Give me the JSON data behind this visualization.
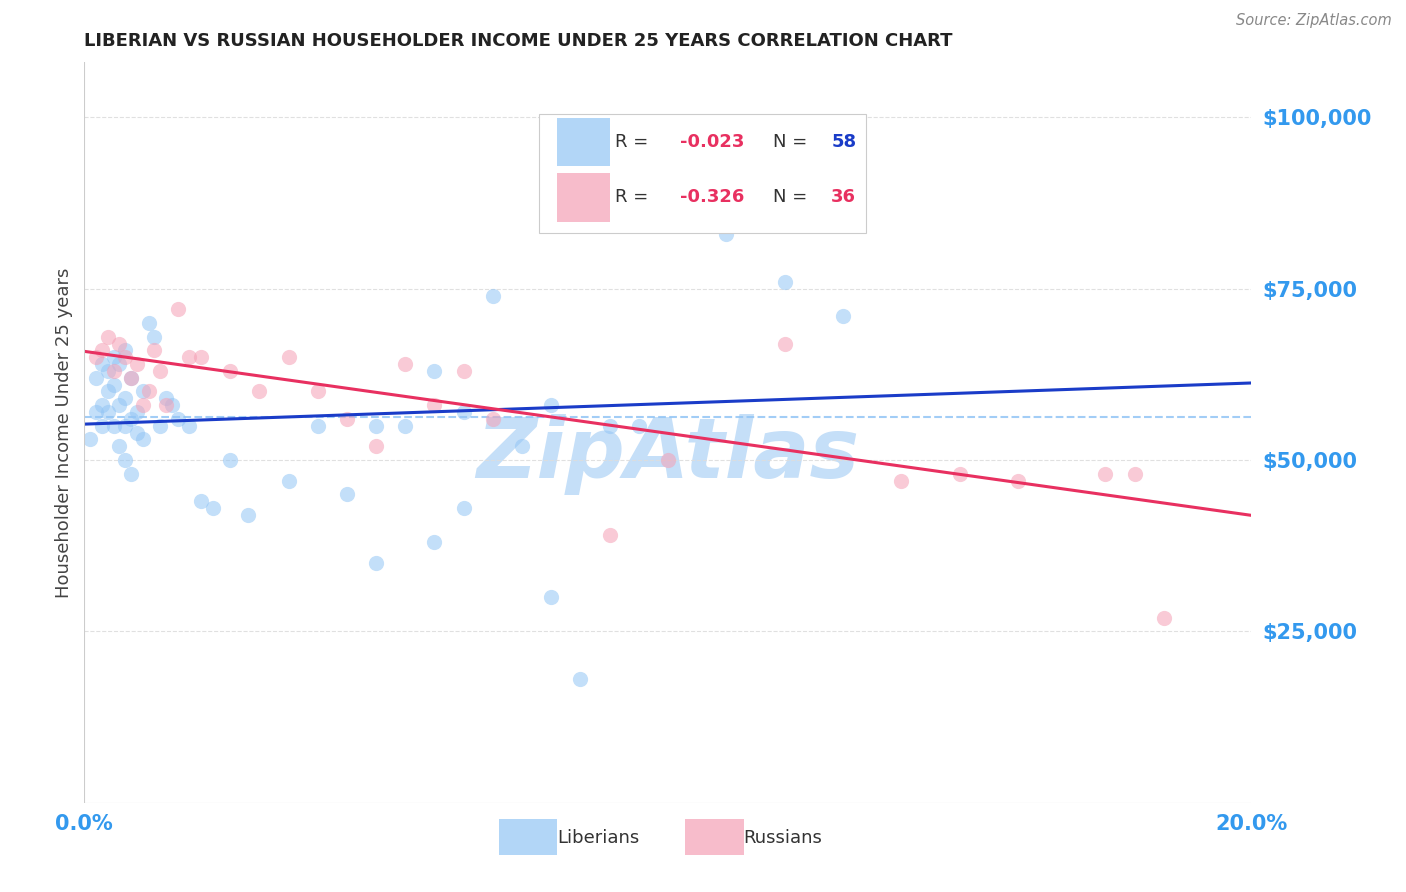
{
  "title": "LIBERIAN VS RUSSIAN HOUSEHOLDER INCOME UNDER 25 YEARS CORRELATION CHART",
  "source": "Source: ZipAtlas.com",
  "ylabel": "Householder Income Under 25 years",
  "xlim": [
    0.0,
    0.2
  ],
  "ylim": [
    0,
    108000
  ],
  "yticks": [
    25000,
    50000,
    75000,
    100000
  ],
  "ytick_labels": [
    "$25,000",
    "$50,000",
    "$75,000",
    "$100,000"
  ],
  "xticks": [
    0.0,
    0.05,
    0.1,
    0.15,
    0.2
  ],
  "xtick_labels": [
    "0.0%",
    "",
    "",
    "",
    "20.0%"
  ],
  "legend_R1": "R = ",
  "legend_V1": "-0.023",
  "legend_N1_label": "N = ",
  "legend_N1": "58",
  "legend_R2": "R = ",
  "legend_V2": "-0.326",
  "legend_N2_label": "N = ",
  "legend_N2": "36",
  "liberian_color": "#92C5F5",
  "russian_color": "#F5A0B5",
  "trend_liberian_color": "#1A3CC8",
  "trend_russian_color": "#E83060",
  "dashed_line_color": "#92C5F5",
  "axis_label_color": "#3399EE",
  "watermark_color": "#C5DFF8",
  "background_color": "#FFFFFF",
  "grid_color": "#DDDDDD",
  "liberian_x": [
    0.001,
    0.002,
    0.002,
    0.003,
    0.003,
    0.003,
    0.004,
    0.004,
    0.004,
    0.005,
    0.005,
    0.005,
    0.006,
    0.006,
    0.006,
    0.007,
    0.007,
    0.007,
    0.007,
    0.008,
    0.008,
    0.008,
    0.009,
    0.009,
    0.01,
    0.01,
    0.011,
    0.012,
    0.013,
    0.014,
    0.015,
    0.016,
    0.018,
    0.02,
    0.022,
    0.025,
    0.028,
    0.035,
    0.04,
    0.045,
    0.05,
    0.055,
    0.06,
    0.065,
    0.07,
    0.08,
    0.09,
    0.1,
    0.11,
    0.12,
    0.05,
    0.06,
    0.065,
    0.075,
    0.08,
    0.085,
    0.095,
    0.13
  ],
  "liberian_y": [
    53000,
    57000,
    62000,
    64000,
    58000,
    55000,
    60000,
    57000,
    63000,
    65000,
    61000,
    55000,
    58000,
    52000,
    64000,
    59000,
    55000,
    50000,
    66000,
    62000,
    56000,
    48000,
    57000,
    54000,
    60000,
    53000,
    70000,
    68000,
    55000,
    59000,
    58000,
    56000,
    55000,
    44000,
    43000,
    50000,
    42000,
    47000,
    55000,
    45000,
    55000,
    55000,
    38000,
    43000,
    74000,
    58000,
    55000,
    92000,
    83000,
    76000,
    35000,
    63000,
    57000,
    52000,
    30000,
    18000,
    55000,
    71000
  ],
  "russian_x": [
    0.002,
    0.003,
    0.004,
    0.005,
    0.006,
    0.007,
    0.008,
    0.009,
    0.01,
    0.011,
    0.012,
    0.013,
    0.014,
    0.016,
    0.018,
    0.02,
    0.025,
    0.03,
    0.035,
    0.04,
    0.045,
    0.05,
    0.055,
    0.06,
    0.065,
    0.07,
    0.08,
    0.09,
    0.1,
    0.12,
    0.14,
    0.15,
    0.16,
    0.175,
    0.18,
    0.185
  ],
  "russian_y": [
    65000,
    66000,
    68000,
    63000,
    67000,
    65000,
    62000,
    64000,
    58000,
    60000,
    66000,
    63000,
    58000,
    72000,
    65000,
    65000,
    63000,
    60000,
    65000,
    60000,
    56000,
    52000,
    64000,
    58000,
    63000,
    56000,
    85000,
    39000,
    50000,
    67000,
    47000,
    48000,
    47000,
    48000,
    48000,
    27000
  ]
}
